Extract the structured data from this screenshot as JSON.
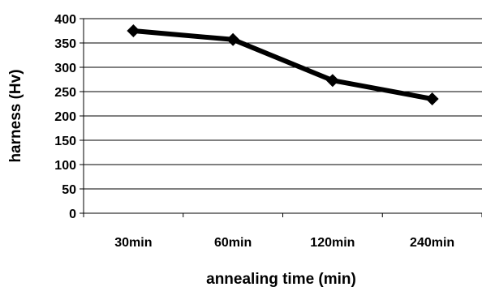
{
  "chart_data": {
    "type": "line",
    "title": "",
    "xlabel": "annealing time (min)",
    "ylabel": "harness (Hv)",
    "categories": [
      "30min",
      "60min",
      "120min",
      "240min"
    ],
    "series": [
      {
        "values": [
          375,
          357,
          273,
          235
        ],
        "color": "#000000",
        "marker": "diamond"
      }
    ],
    "ylim": [
      0,
      400
    ],
    "yticks": [
      0,
      50,
      100,
      150,
      200,
      250,
      300,
      350,
      400
    ],
    "grid": "horizontal",
    "legend": "none"
  }
}
